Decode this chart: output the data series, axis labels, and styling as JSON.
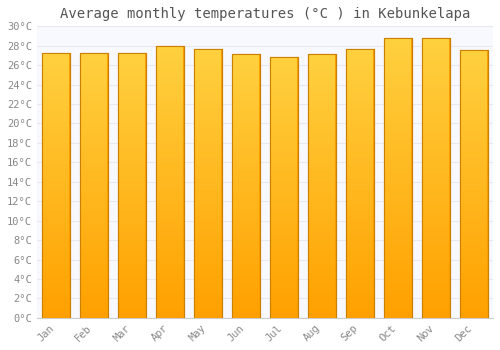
{
  "title": "Average monthly temperatures (°C ) in Kebunkelapa",
  "months": [
    "Jan",
    "Feb",
    "Mar",
    "Apr",
    "May",
    "Jun",
    "Jul",
    "Aug",
    "Sep",
    "Oct",
    "Nov",
    "Dec"
  ],
  "values": [
    27.3,
    27.2,
    27.3,
    28.0,
    27.7,
    27.1,
    26.8,
    27.1,
    27.7,
    28.8,
    28.8,
    27.6
  ],
  "ylim": [
    0,
    30
  ],
  "yticks": [
    0,
    2,
    4,
    6,
    8,
    10,
    12,
    14,
    16,
    18,
    20,
    22,
    24,
    26,
    28,
    30
  ],
  "bar_color_light": "#FFD060",
  "bar_color_dark": "#FFA000",
  "bar_edge_color": "#CC8000",
  "background_color": "#ffffff",
  "plot_bg_color": "#f8f8ff",
  "grid_color": "#e8e8ee",
  "tick_label_color": "#888888",
  "title_color": "#555555",
  "title_fontsize": 10,
  "tick_fontsize": 7.5
}
